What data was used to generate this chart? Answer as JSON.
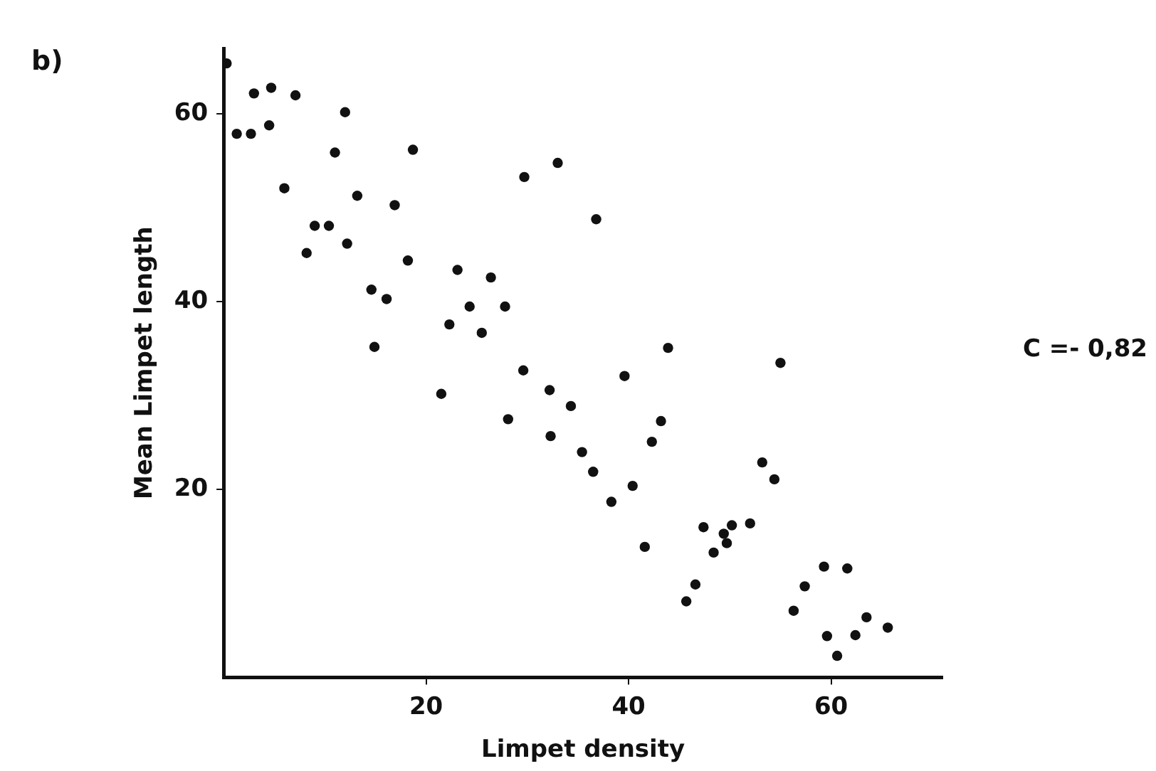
{
  "chart_data": {
    "type": "scatter",
    "xlabel": "Limpet density",
    "ylabel": "Mean Limpet length",
    "annotations": [
      "b)",
      "C =- 0,82"
    ],
    "x": [
      0.3,
      1.3,
      2.7,
      3.0,
      4.7,
      4.5,
      7.1,
      6.0,
      12.0,
      11.0,
      13.2,
      9.0,
      10.4,
      8.2,
      12.2,
      16.9,
      18.7,
      18.2,
      14.6,
      16.1,
      14.9,
      29.7,
      33.0,
      23.1,
      26.4,
      24.3,
      27.8,
      22.3,
      25.5,
      21.5,
      29.6,
      28.1,
      32.2,
      34.3,
      32.3,
      35.4,
      36.5,
      38.3,
      40.4,
      39.6,
      41.6,
      42.3,
      43.2,
      43.9,
      36.8,
      55.0,
      53.2,
      54.4,
      47.4,
      50.2,
      52.0,
      49.4,
      49.7,
      48.4,
      46.6,
      45.7,
      59.3,
      61.6,
      57.4,
      56.3,
      59.6,
      62.4,
      63.5,
      65.6,
      60.6
    ],
    "values": [
      65.4,
      57.9,
      57.9,
      62.2,
      62.8,
      58.8,
      62.0,
      52.1,
      60.2,
      55.9,
      51.3,
      48.1,
      48.1,
      45.2,
      46.2,
      50.3,
      56.2,
      44.4,
      41.3,
      40.3,
      35.2,
      53.3,
      54.8,
      43.4,
      42.6,
      39.5,
      39.5,
      37.6,
      36.7,
      30.2,
      32.7,
      27.5,
      30.6,
      28.9,
      25.7,
      24.0,
      21.9,
      18.7,
      20.4,
      32.1,
      13.9,
      25.1,
      27.3,
      35.1,
      48.8,
      33.5,
      22.9,
      21.1,
      16.0,
      16.2,
      16.4,
      15.3,
      14.3,
      13.3,
      9.9,
      8.1,
      11.8,
      11.6,
      9.7,
      7.1,
      4.4,
      4.5,
      6.4,
      5.3,
      2.3
    ],
    "color": "#111111",
    "marker": "circle",
    "grid": false,
    "legend": false,
    "xlim": [
      0,
      71
    ],
    "ylim": [
      0,
      67
    ],
    "xticks": [
      20,
      40,
      60
    ],
    "yticks": [
      20,
      40,
      60
    ]
  }
}
